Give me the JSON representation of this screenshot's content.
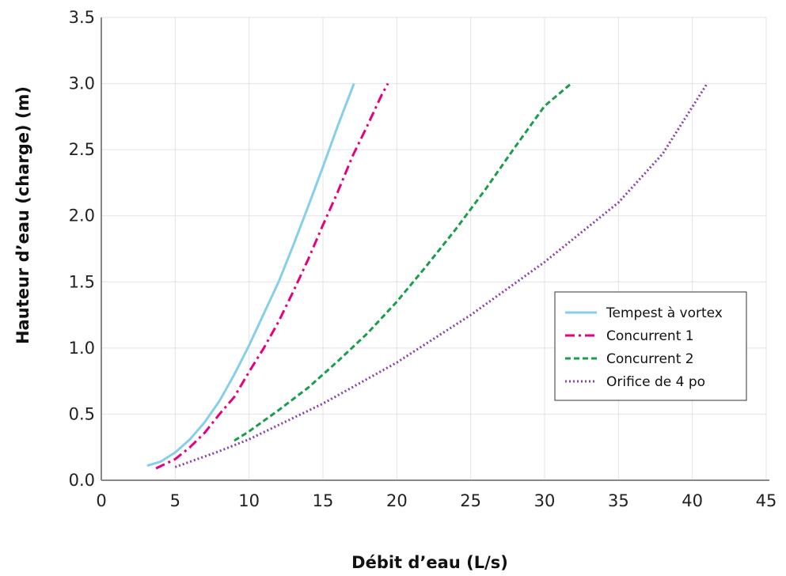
{
  "chart_data": {
    "type": "line",
    "xlabel": "Débit d’eau (L/s)",
    "ylabel": "Hauteur d’eau (charge) (m)",
    "xlim": [
      0,
      45
    ],
    "ylim": [
      0,
      3.5
    ],
    "x_ticks": [
      "0",
      "5",
      "10",
      "15",
      "20",
      "25",
      "30",
      "35",
      "40",
      "45"
    ],
    "y_ticks": [
      "0.0",
      "0.5",
      "1.0",
      "1.5",
      "2.0",
      "2.5",
      "3.0",
      "3.5"
    ],
    "grid": true,
    "legend_position": "right",
    "series": [
      {
        "name": "Tempest à vortex",
        "color": "#87CEEB",
        "dash": "solid",
        "points": [
          [
            3.1,
            0.11
          ],
          [
            4,
            0.14
          ],
          [
            5,
            0.21
          ],
          [
            6,
            0.31
          ],
          [
            7,
            0.44
          ],
          [
            8,
            0.6
          ],
          [
            9,
            0.8
          ],
          [
            10,
            1.02
          ],
          [
            11,
            1.26
          ],
          [
            12,
            1.5
          ],
          [
            13,
            1.78
          ],
          [
            14,
            2.07
          ],
          [
            15,
            2.37
          ],
          [
            16,
            2.68
          ],
          [
            17.1,
            3.0
          ]
        ]
      },
      {
        "name": "Concurrent 1",
        "color": "#E6007E",
        "dash": "dashdot",
        "points": [
          [
            3.7,
            0.09
          ],
          [
            5,
            0.16
          ],
          [
            6,
            0.25
          ],
          [
            7,
            0.36
          ],
          [
            8,
            0.5
          ],
          [
            9,
            0.63
          ],
          [
            10,
            0.82
          ],
          [
            11,
            1.0
          ],
          [
            12,
            1.2
          ],
          [
            13,
            1.43
          ],
          [
            14,
            1.67
          ],
          [
            15,
            1.93
          ],
          [
            16,
            2.18
          ],
          [
            17,
            2.45
          ],
          [
            18,
            2.68
          ],
          [
            19,
            2.92
          ],
          [
            19.4,
            3.0
          ]
        ]
      },
      {
        "name": "Concurrent 2",
        "color": "#1A9E4B",
        "dash": "dashed",
        "points": [
          [
            9,
            0.3
          ],
          [
            10,
            0.37
          ],
          [
            12,
            0.53
          ],
          [
            14,
            0.7
          ],
          [
            16,
            0.9
          ],
          [
            18,
            1.11
          ],
          [
            20,
            1.35
          ],
          [
            22,
            1.62
          ],
          [
            24,
            1.9
          ],
          [
            26,
            2.2
          ],
          [
            28,
            2.52
          ],
          [
            30,
            2.83
          ],
          [
            31.8,
            3.0
          ]
        ]
      },
      {
        "name": "Orifice de 4 po",
        "color": "#8B3FA8",
        "dash": "dotted",
        "points": [
          [
            5,
            0.1
          ],
          [
            8,
            0.22
          ],
          [
            10,
            0.31
          ],
          [
            15,
            0.58
          ],
          [
            20,
            0.89
          ],
          [
            25,
            1.25
          ],
          [
            30,
            1.65
          ],
          [
            35,
            2.1
          ],
          [
            38,
            2.47
          ],
          [
            41,
            3.0
          ]
        ]
      }
    ]
  }
}
